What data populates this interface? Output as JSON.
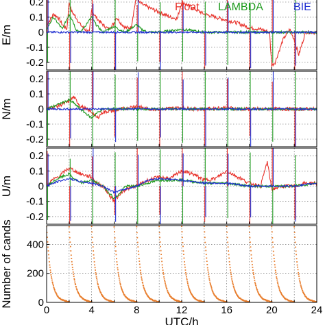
{
  "chart_data": [
    {
      "type": "line",
      "ylabel": "E/m",
      "ylim": [
        -0.25,
        0.25
      ],
      "yticks": [
        "0.2",
        "0.1",
        "0",
        "-0.1",
        "-0.2"
      ],
      "xlim": [
        0,
        24
      ],
      "grid": true,
      "legend_position": "top-right",
      "series": [
        {
          "name": "Float",
          "color": "#e8312a",
          "x": [
            0,
            0.3,
            0.6,
            1.0,
            1.4,
            1.8,
            2.0,
            2.2,
            2.6,
            3.0,
            3.4,
            3.8,
            4.0,
            4.2,
            4.6,
            5.0,
            5.5,
            6.0,
            6.2,
            6.6,
            7.0,
            7.5,
            8.0,
            8.2,
            8.6,
            9.2,
            9.8,
            10.4,
            11.0,
            11.6,
            12.0,
            12.3,
            13.0,
            14.0,
            15.0,
            16.0,
            17.0,
            18.0,
            19.0,
            19.8,
            20.0,
            20.3,
            21.0,
            21.6,
            22.0,
            22.4,
            23.0,
            24.0
          ],
          "y": [
            0.05,
            0.08,
            0.12,
            0.1,
            0.05,
            0.02,
            0.2,
            0.14,
            0.1,
            0.05,
            0.02,
            0.0,
            0.15,
            0.12,
            0.08,
            0.05,
            0.02,
            0.06,
            0.1,
            0.06,
            0.03,
            0.03,
            0.25,
            0.2,
            0.18,
            0.16,
            0.14,
            0.12,
            0.1,
            0.09,
            0.2,
            0.19,
            0.16,
            0.12,
            0.1,
            0.08,
            0.06,
            0.03,
            0.02,
            0.0,
            -0.22,
            -0.2,
            -0.05,
            0.02,
            -0.05,
            -0.15,
            0.0,
            0.0
          ]
        },
        {
          "name": "LAMBDA",
          "color": "#1e9a1e",
          "x": [
            0,
            0.6,
            1.0,
            1.4,
            2.0,
            2.3,
            2.6,
            3.0,
            4.0,
            4.4,
            5.0,
            6.0,
            6.4,
            7.0,
            8.0,
            8.4,
            9.0,
            10.0,
            12.0,
            14.0,
            16.0,
            18.0,
            20.0,
            22.0,
            24.0
          ],
          "y": [
            0.02,
            0.1,
            0.06,
            0.02,
            0.12,
            0.08,
            0.02,
            0.0,
            0.1,
            0.05,
            0.0,
            0.04,
            0.02,
            0.0,
            0.05,
            0.02,
            0.0,
            0.0,
            0.02,
            0.0,
            0.0,
            0.0,
            0.0,
            0.0,
            0.0
          ]
        },
        {
          "name": "BIE",
          "color": "#1f2ed1",
          "x": [
            0,
            2.0,
            4.0,
            6.0,
            8.0,
            10.0,
            12.0,
            14.0,
            16.0,
            18.0,
            20.0,
            22.0,
            24.0
          ],
          "y": [
            0.0,
            0.0,
            0.0,
            0.0,
            0.0,
            0.0,
            0.0,
            0.0,
            0.0,
            0.0,
            0.0,
            0.0,
            0.0
          ]
        }
      ]
    },
    {
      "type": "line",
      "ylabel": "N/m",
      "ylim": [
        -0.25,
        0.25
      ],
      "yticks": [
        "0.2",
        "0.1",
        "0",
        "-0.1",
        "-0.2"
      ],
      "xlim": [
        0,
        24
      ],
      "grid": true,
      "series": [
        {
          "name": "Float",
          "color": "#e8312a",
          "x": [
            0,
            1.0,
            2.0,
            2.4,
            3.0,
            4.0,
            4.5,
            5.0,
            6.0,
            8.0,
            9.0,
            10.0,
            12.0,
            13.0,
            14.0,
            16.0,
            17.0,
            18.0,
            20.0,
            22.0,
            24.0
          ],
          "y": [
            0.0,
            0.02,
            0.05,
            0.08,
            0.02,
            -0.02,
            -0.06,
            -0.02,
            -0.01,
            0.02,
            0.0,
            0.0,
            0.01,
            0.0,
            0.0,
            0.01,
            0.0,
            0.0,
            0.0,
            0.0,
            0.0
          ]
        },
        {
          "name": "LAMBDA",
          "color": "#1e9a1e",
          "x": [
            0,
            2.0,
            2.4,
            3.0,
            4.0,
            4.4,
            5.0,
            6.0,
            8.0,
            12.0,
            16.0,
            20.0,
            24.0
          ],
          "y": [
            0.0,
            0.06,
            0.04,
            0.0,
            -0.06,
            -0.03,
            0.0,
            0.0,
            0.0,
            0.0,
            0.0,
            0.0,
            0.0
          ]
        },
        {
          "name": "BIE",
          "color": "#1f2ed1",
          "x": [
            0,
            2.0,
            4.0,
            6.0,
            8.0,
            10.0,
            12.0,
            14.0,
            16.0,
            18.0,
            20.0,
            22.0,
            24.0
          ],
          "y": [
            0.0,
            0.0,
            0.0,
            0.0,
            0.0,
            0.0,
            0.0,
            0.0,
            0.0,
            0.0,
            0.0,
            0.0,
            0.0
          ]
        }
      ]
    },
    {
      "type": "line",
      "ylabel": "U/m",
      "ylim": [
        -0.25,
        0.25
      ],
      "yticks": [
        "0.2",
        "0.1",
        "0",
        "-0.1",
        "-0.2"
      ],
      "xlim": [
        0,
        24
      ],
      "grid": true,
      "series": [
        {
          "name": "Float",
          "color": "#e8312a",
          "x": [
            0,
            0.5,
            1.0,
            2.0,
            2.5,
            3.0,
            4.0,
            4.5,
            5.0,
            6.0,
            6.5,
            7.0,
            8.0,
            9.0,
            10.0,
            11.0,
            12.0,
            13.0,
            14.0,
            15.0,
            16.0,
            17.0,
            18.0,
            19.0,
            19.6,
            20.0,
            21.0,
            22.0,
            23.0,
            24.0
          ],
          "y": [
            0.0,
            0.04,
            0.06,
            0.12,
            0.1,
            0.08,
            0.06,
            0.02,
            0.0,
            -0.1,
            -0.05,
            -0.02,
            0.0,
            0.04,
            0.06,
            0.05,
            0.1,
            0.08,
            0.04,
            0.05,
            0.1,
            0.06,
            0.02,
            0.0,
            0.16,
            -0.02,
            0.0,
            0.0,
            0.02,
            0.02
          ]
        },
        {
          "name": "LAMBDA",
          "color": "#1e9a1e",
          "x": [
            0,
            1.0,
            2.0,
            2.4,
            3.0,
            4.0,
            5.0,
            6.0,
            6.5,
            7.0,
            8.0,
            10.0,
            12.0,
            14.0,
            16.0,
            18.0,
            20.0,
            22.0,
            24.0
          ],
          "y": [
            0.0,
            0.05,
            0.08,
            0.05,
            0.02,
            0.04,
            0.0,
            -0.08,
            -0.05,
            0.0,
            0.0,
            0.04,
            0.04,
            0.02,
            0.02,
            0.0,
            0.0,
            0.0,
            0.02
          ]
        },
        {
          "name": "BIE",
          "color": "#1f2ed1",
          "x": [
            0,
            1.0,
            2.0,
            3.0,
            4.0,
            5.0,
            6.0,
            7.0,
            8.0,
            9.0,
            10.0,
            12.0,
            14.0,
            16.0,
            18.0,
            20.0,
            22.0,
            24.0
          ],
          "y": [
            0.0,
            0.03,
            0.05,
            0.03,
            0.02,
            0.0,
            -0.04,
            -0.02,
            0.0,
            0.04,
            0.05,
            0.04,
            0.02,
            0.02,
            0.0,
            0.0,
            0.0,
            0.02
          ]
        }
      ]
    },
    {
      "type": "scatter",
      "ylabel": "Number of cands",
      "ylim": [
        0,
        530
      ],
      "yticks": [
        "400",
        "200",
        "0"
      ],
      "xlim": [
        0,
        24
      ],
      "xticks": [
        "0",
        "4",
        "8",
        "12",
        "16",
        "20",
        "24"
      ],
      "xlabel": "UTC/h",
      "grid": true,
      "series": [
        {
          "color": "#e87d2c",
          "reset_hours": [
            0,
            2,
            4,
            6,
            8,
            10,
            12,
            14,
            16,
            18,
            20,
            22
          ],
          "peak_counts": [
            520,
            520,
            520,
            520,
            520,
            520,
            520,
            520,
            520,
            520,
            520,
            520
          ]
        }
      ]
    }
  ],
  "legend": {
    "items": [
      {
        "label": "Float",
        "color": "#e8312a"
      },
      {
        "label": "LAMBDA",
        "color": "#1e9a1e"
      },
      {
        "label": "BIE",
        "color": "#1f2ed1"
      }
    ]
  }
}
